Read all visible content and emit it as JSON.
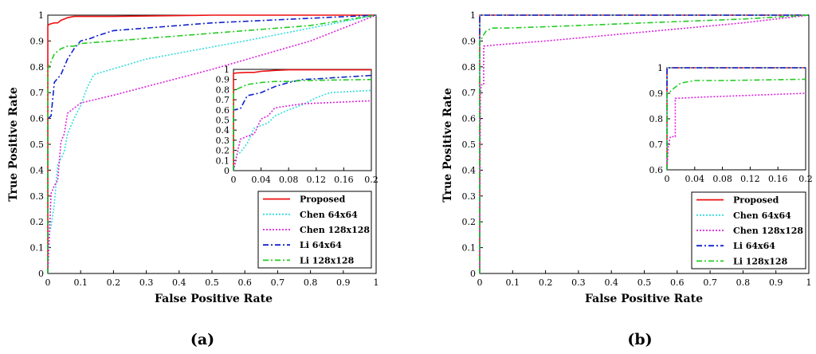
{
  "series_meta": [
    {
      "name": "Proposed",
      "color": "#ee1111",
      "dash": ""
    },
    {
      "name": "Chen 64x64",
      "color": "#33dddd",
      "dash": "2,2"
    },
    {
      "name": "Chen 128x128",
      "color": "#dd22dd",
      "dash": "2,2"
    },
    {
      "name": "Li 64x64",
      "color": "#1122cc",
      "dash": "7,3,2,3"
    },
    {
      "name": "Li 128x128",
      "color": "#22cc22",
      "dash": "7,3,2,3"
    }
  ],
  "chart_data": [
    {
      "type": "line",
      "title": "",
      "caption_label": "a",
      "xlabel": "False Positive Rate",
      "ylabel": "True Positive Rate",
      "xlim": [
        0,
        1
      ],
      "ylim": [
        0,
        1
      ],
      "xticks": [
        "0",
        "0.1",
        "0.2",
        "0.3",
        "0.4",
        "0.5",
        "0.6",
        "0.7",
        "0.8",
        "0.9",
        "1"
      ],
      "yticks": [
        "0",
        "0.1",
        "0.2",
        "0.3",
        "0.4",
        "0.5",
        "0.6",
        "0.7",
        "0.8",
        "0.9",
        "1"
      ],
      "legend_position": "bottom-right",
      "series": [
        {
          "name": "Proposed",
          "x": [
            0,
            0,
            0.005,
            0.02,
            0.03,
            0.04,
            0.05,
            0.06,
            0.08,
            0.2,
            0.5,
            1
          ],
          "y": [
            0,
            0.96,
            0.965,
            0.97,
            0.97,
            0.98,
            0.985,
            0.99,
            0.995,
            0.995,
            1,
            1
          ]
        },
        {
          "name": "Chen 64x64",
          "x": [
            0,
            0.005,
            0.01,
            0.02,
            0.03,
            0.05,
            0.06,
            0.08,
            0.1,
            0.12,
            0.14,
            0.3,
            0.6,
            1
          ],
          "y": [
            0,
            0.16,
            0.18,
            0.27,
            0.42,
            0.47,
            0.54,
            0.6,
            0.65,
            0.72,
            0.77,
            0.83,
            0.9,
            1
          ]
        },
        {
          "name": "Chen 128x128",
          "x": [
            0,
            0.01,
            0.02,
            0.03,
            0.04,
            0.05,
            0.06,
            0.08,
            0.1,
            0.2,
            0.5,
            0.8,
            1
          ],
          "y": [
            0,
            0.31,
            0.34,
            0.36,
            0.51,
            0.54,
            0.62,
            0.64,
            0.66,
            0.69,
            0.79,
            0.9,
            1
          ]
        },
        {
          "name": "Li 64x64",
          "x": [
            0,
            0,
            0.01,
            0.02,
            0.04,
            0.05,
            0.06,
            0.08,
            0.1,
            0.13,
            0.15,
            0.2,
            0.5,
            1
          ],
          "y": [
            0,
            0.6,
            0.61,
            0.74,
            0.77,
            0.8,
            0.83,
            0.87,
            0.9,
            0.91,
            0.92,
            0.94,
            0.97,
            1
          ]
        },
        {
          "name": "Li 128x128",
          "x": [
            0,
            0,
            0.01,
            0.02,
            0.04,
            0.06,
            0.08,
            0.1,
            0.2,
            0.5,
            0.8,
            1
          ],
          "y": [
            0,
            0.79,
            0.82,
            0.85,
            0.87,
            0.88,
            0.88,
            0.89,
            0.9,
            0.93,
            0.96,
            1
          ]
        }
      ],
      "inset": {
        "xlim": [
          0,
          0.2
        ],
        "ylim": [
          0,
          1
        ],
        "xticks": [
          "0",
          "0.04",
          "0.08",
          "0.12",
          "0.16",
          "0.2"
        ],
        "yticks": [
          "0",
          "0.1",
          "0.2",
          "0.3",
          "0.4",
          "0.5",
          "0.6",
          "0.7",
          "0.8",
          "0.9",
          "1"
        ]
      }
    },
    {
      "type": "line",
      "title": "",
      "caption_label": "b",
      "xlabel": "False Positive Rate",
      "ylabel": "True Positive Rate",
      "xlim": [
        0,
        1
      ],
      "ylim": [
        0,
        1
      ],
      "xticks": [
        "0",
        "0.1",
        "0.2",
        "0.3",
        "0.4",
        "0.5",
        "0.6",
        "0.7",
        "0.8",
        "0.9",
        "1"
      ],
      "yticks": [
        "0",
        "0.1",
        "0.2",
        "0.3",
        "0.4",
        "0.5",
        "0.6",
        "0.7",
        "0.8",
        "0.9",
        "1"
      ],
      "legend_position": "bottom-right",
      "series": [
        {
          "name": "Proposed",
          "x": [
            0,
            0,
            1
          ],
          "y": [
            0,
            1,
            1
          ]
        },
        {
          "name": "Chen 64x64",
          "x": [
            0,
            0,
            1
          ],
          "y": [
            0,
            1,
            1
          ]
        },
        {
          "name": "Chen 128x128",
          "x": [
            0,
            0.002,
            0.005,
            0.005,
            0.012,
            0.012,
            0.05,
            0.2,
            0.5,
            0.8,
            1
          ],
          "y": [
            0,
            0.7,
            0.73,
            0.73,
            0.73,
            0.88,
            0.885,
            0.9,
            0.935,
            0.97,
            1
          ]
        },
        {
          "name": "Li 64x64",
          "x": [
            0,
            0,
            1
          ],
          "y": [
            0,
            1,
            1
          ]
        },
        {
          "name": "Li 128x128",
          "x": [
            0,
            0,
            0.004,
            0.01,
            0.02,
            0.04,
            0.08,
            0.2,
            0.5,
            0.8,
            1
          ],
          "y": [
            0,
            0.9,
            0.905,
            0.92,
            0.94,
            0.95,
            0.95,
            0.955,
            0.97,
            0.985,
            1
          ]
        }
      ],
      "inset": {
        "xlim": [
          0,
          0.2
        ],
        "ylim": [
          0.6,
          1
        ],
        "xticks": [
          "0",
          "0.04",
          "0.08",
          "0.12",
          "0.16",
          "0.2"
        ],
        "yticks": [
          "0.6",
          "0.7",
          "0.8",
          "0.9",
          "1"
        ]
      }
    }
  ]
}
